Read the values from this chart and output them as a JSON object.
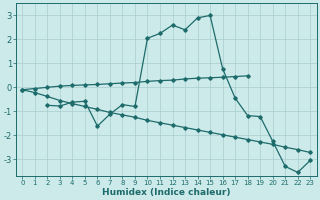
{
  "xlabel": "Humidex (Indice chaleur)",
  "xlim": [
    -0.5,
    23.5
  ],
  "ylim": [
    -3.7,
    3.5
  ],
  "yticks": [
    -3,
    -2,
    -1,
    0,
    1,
    2,
    3
  ],
  "xticks": [
    0,
    1,
    2,
    3,
    4,
    5,
    6,
    7,
    8,
    9,
    10,
    11,
    12,
    13,
    14,
    15,
    16,
    17,
    18,
    19,
    20,
    21,
    22,
    23
  ],
  "bg_color": "#cdeaea",
  "line_color": "#1e6b6b",
  "line_width": 0.9,
  "marker": "D",
  "marker_size": 1.8,
  "grid_color": "#a8cccc",
  "lines": [
    {
      "x": [
        0,
        1,
        2,
        3,
        4,
        5,
        6,
        7,
        8,
        9,
        10,
        11,
        12,
        13,
        14,
        15,
        16,
        17,
        18
      ],
      "y": [
        -0.1,
        -0.05,
        0.0,
        0.05,
        0.08,
        0.1,
        0.12,
        0.15,
        0.18,
        0.2,
        0.25,
        0.28,
        0.3,
        0.35,
        0.38,
        0.4,
        0.42,
        0.45,
        0.48
      ]
    },
    {
      "x": [
        0,
        1,
        2,
        3,
        4,
        5,
        6,
        7,
        8,
        9,
        10,
        11,
        12,
        13,
        14,
        15,
        16,
        17,
        18,
        19,
        20,
        21,
        22,
        23
      ],
      "y": [
        -0.1,
        -0.22,
        -0.38,
        -0.55,
        -0.68,
        -0.8,
        -0.92,
        -1.05,
        -1.15,
        -1.25,
        -1.38,
        -1.48,
        -1.58,
        -1.68,
        -1.78,
        -1.88,
        -1.98,
        -2.08,
        -2.18,
        -2.28,
        -2.38,
        -2.5,
        -2.6,
        -2.72
      ]
    },
    {
      "x": [
        2,
        3,
        4,
        5,
        6,
        7,
        8,
        9,
        10,
        11,
        12,
        13,
        14,
        15,
        16,
        17,
        18,
        19,
        20,
        21,
        22,
        23
      ],
      "y": [
        -0.75,
        -0.78,
        -0.62,
        -0.58,
        -1.62,
        -1.12,
        -0.72,
        -0.8,
        2.05,
        2.25,
        2.6,
        2.4,
        2.9,
        3.0,
        0.78,
        -0.45,
        -1.18,
        -1.22,
        -2.25,
        -3.3,
        -3.55,
        -3.05
      ]
    }
  ]
}
